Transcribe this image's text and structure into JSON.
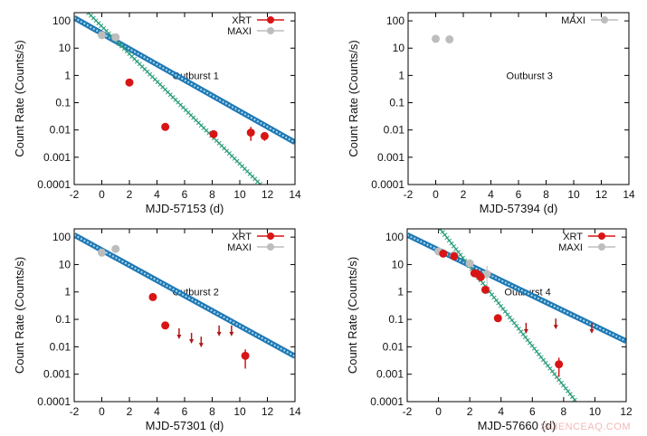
{
  "colors": {
    "xrt": "#d81515",
    "maxi": "#bdbdbd",
    "fit_slow": "#1f78b4",
    "fit_fast": "#2a9d7c",
    "upper_limit": "#b01818"
  },
  "watermark": "SCIENCEAQ.COM",
  "chart_data": [
    {
      "type": "scatter",
      "panel": "top-left",
      "annotation": "Outburst 1",
      "xlabel": "MJD-57153 (d)",
      "ylabel": "Count Rate (Counts/s)",
      "xlim": [
        -2,
        14
      ],
      "ylim": [
        0.0001,
        200
      ],
      "yscale": "log",
      "xticks": [
        "-2",
        "0",
        "2",
        "4",
        "6",
        "8",
        "10",
        "12",
        "14"
      ],
      "yticks": [
        "0.0001",
        "0.001",
        "0.01",
        "0.1",
        "1",
        "10",
        "100"
      ],
      "legend": [
        "XRT",
        "MAXI"
      ],
      "legend_position": "top-right",
      "maxi": [
        {
          "x": 0,
          "y": 30
        },
        {
          "x": 1,
          "y": 25
        }
      ],
      "xrt": [
        {
          "x": 2,
          "y": 0.55
        },
        {
          "x": 4.6,
          "y": 0.013
        },
        {
          "x": 8.1,
          "y": 0.007
        },
        {
          "x": 10.8,
          "y": 0.008,
          "ylo": 0.004,
          "yhi": 0.013
        },
        {
          "x": 11.8,
          "y": 0.006,
          "ylo": 0.004,
          "yhi": 0.008
        }
      ],
      "upper_limits": [],
      "fits": [
        {
          "kind": "slow",
          "x": [
            -2,
            14
          ],
          "y": [
            130,
            0.0035
          ]
        },
        {
          "kind": "fast",
          "x": [
            -1,
            11.5
          ],
          "y": [
            200,
            0.0001
          ]
        }
      ]
    },
    {
      "type": "scatter",
      "panel": "top-right",
      "annotation": "Outburst 3",
      "xlabel": "MJD-57394 (d)",
      "ylabel": "Count Rate (Counts/s)",
      "xlim": [
        -2,
        14
      ],
      "ylim": [
        0.0001,
        200
      ],
      "yscale": "log",
      "xticks": [
        "-2",
        "0",
        "2",
        "4",
        "6",
        "8",
        "10",
        "12",
        "14"
      ],
      "yticks": [
        "0.0001",
        "0.001",
        "0.01",
        "0.1",
        "1",
        "10",
        "100"
      ],
      "legend": [
        "MAXI"
      ],
      "legend_position": "top-right",
      "maxi": [
        {
          "x": 0,
          "y": 22
        },
        {
          "x": 1,
          "y": 21
        }
      ],
      "xrt": [],
      "upper_limits": [],
      "fits": []
    },
    {
      "type": "scatter",
      "panel": "bottom-left",
      "annotation": "Outburst 2",
      "xlabel": "MJD-57301 (d)",
      "ylabel": "Count Rate (Counts/s)",
      "xlim": [
        -2,
        14
      ],
      "ylim": [
        0.0001,
        200
      ],
      "yscale": "log",
      "xticks": [
        "-2",
        "0",
        "2",
        "4",
        "6",
        "8",
        "10",
        "12",
        "14"
      ],
      "yticks": [
        "0.0001",
        "0.001",
        "0.01",
        "0.1",
        "1",
        "10",
        "100"
      ],
      "legend": [
        "XRT",
        "MAXI"
      ],
      "legend_position": "top-right",
      "maxi": [
        {
          "x": 0,
          "y": 27
        },
        {
          "x": 1,
          "y": 37
        }
      ],
      "xrt": [
        {
          "x": 3.7,
          "y": 0.65
        },
        {
          "x": 4.6,
          "y": 0.06
        },
        {
          "x": 10.4,
          "y": 0.0047,
          "ylo": 0.0016,
          "yhi": 0.008
        }
      ],
      "upper_limits": [
        {
          "x": 5.6,
          "y": 0.022
        },
        {
          "x": 6.5,
          "y": 0.015
        },
        {
          "x": 7.2,
          "y": 0.011
        },
        {
          "x": 8.5,
          "y": 0.028
        },
        {
          "x": 9.4,
          "y": 0.028
        }
      ],
      "fits": [
        {
          "kind": "slow",
          "x": [
            -2,
            14
          ],
          "y": [
            120,
            0.0045
          ]
        }
      ]
    },
    {
      "type": "scatter",
      "panel": "bottom-right",
      "annotation": "Outburst 4",
      "xlabel": "MJD-57660 (d)",
      "ylabel": "Count Rate (Counts/s)",
      "xlim": [
        -2,
        12
      ],
      "ylim": [
        0.0001,
        200
      ],
      "yscale": "log",
      "xticks": [
        "-2",
        "0",
        "2",
        "4",
        "6",
        "8",
        "10",
        "12"
      ],
      "yticks": [
        "0.0001",
        "0.001",
        "0.01",
        "0.1",
        "1",
        "10",
        "100"
      ],
      "legend": [
        "XRT",
        "MAXI"
      ],
      "legend_position": "top-right",
      "maxi": [
        {
          "x": 0,
          "y": 30
        },
        {
          "x": 1,
          "y": 22
        },
        {
          "x": 2,
          "y": 11
        },
        {
          "x": 3.1,
          "y": 4.5,
          "ylo": 1.5,
          "yhi": 9
        }
      ],
      "xrt": [
        {
          "x": 0.3,
          "y": 25
        },
        {
          "x": 1,
          "y": 20
        },
        {
          "x": 2.3,
          "y": 4.8
        },
        {
          "x": 2.5,
          "y": 4.5
        },
        {
          "x": 2.7,
          "y": 3.5
        },
        {
          "x": 3,
          "y": 1.2
        },
        {
          "x": 3.8,
          "y": 0.11
        },
        {
          "x": 7.7,
          "y": 0.0023,
          "ylo": 0.0008,
          "yhi": 0.004
        }
      ],
      "upper_limits": [
        {
          "x": 5.6,
          "y": 0.035
        },
        {
          "x": 7.5,
          "y": 0.05
        },
        {
          "x": 9.8,
          "y": 0.035
        }
      ],
      "fits": [
        {
          "kind": "slow",
          "x": [
            -2,
            12
          ],
          "y": [
            120,
            0.016
          ]
        },
        {
          "kind": "fast",
          "x": [
            0.1,
            8.8
          ],
          "y": [
            200,
            0.0001
          ]
        }
      ]
    }
  ]
}
